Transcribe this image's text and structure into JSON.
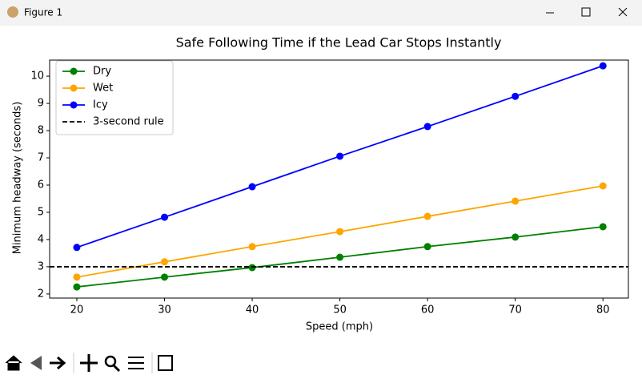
{
  "window": {
    "title": "Figure 1"
  },
  "chart_data": {
    "type": "line",
    "title": "Safe Following Time if the Lead Car Stops Instantly",
    "x_label": "Speed (mph)",
    "y_label": "Minimum headway (seconds)",
    "x": [
      20,
      30,
      40,
      50,
      60,
      70,
      80
    ],
    "series": [
      {
        "name": "Dry",
        "color": "#008000",
        "values": [
          2.26,
          2.62,
          2.97,
          3.35,
          3.74,
          4.09,
          4.47
        ]
      },
      {
        "name": "Wet",
        "color": "#ffa500",
        "values": [
          2.62,
          3.18,
          3.74,
          4.29,
          4.85,
          5.41,
          5.97
        ]
      },
      {
        "name": "Icy",
        "color": "#0000ff",
        "values": [
          3.71,
          4.82,
          5.94,
          7.06,
          8.15,
          9.26,
          10.38
        ]
      }
    ],
    "hline": {
      "name": "3-second rule",
      "value": 3,
      "color": "#000000",
      "style": "dashed"
    },
    "xlim": [
      16.9,
      82.9
    ],
    "ylim": [
      1.85,
      10.59
    ],
    "xticks": [
      20,
      30,
      40,
      50,
      60,
      70,
      80
    ],
    "yticks": [
      2,
      3,
      4,
      5,
      6,
      7,
      8,
      9,
      10
    ],
    "legend": "upper left",
    "grid": false
  }
}
